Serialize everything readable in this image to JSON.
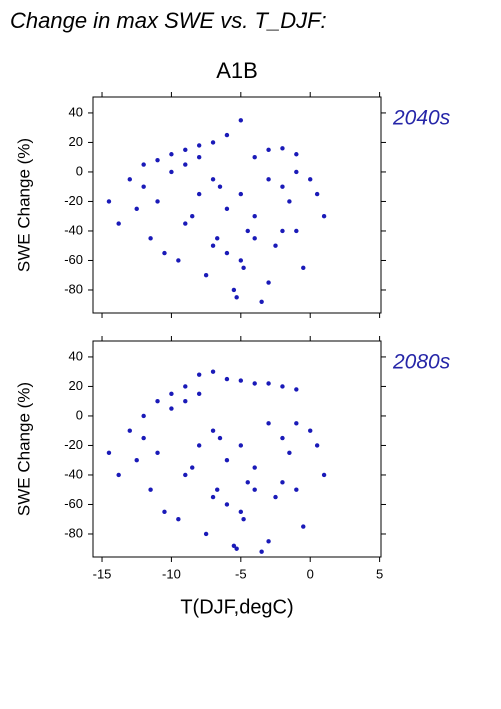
{
  "title": "Change in max SWE vs. T_DJF:",
  "subtitle": "A1B",
  "chart_data": [
    {
      "type": "scatter",
      "label": "2040s",
      "ylabel": "SWE Change (%)",
      "color": "#1a1ab8",
      "xlim": [
        -15.65,
        5.1
      ],
      "ylim": [
        -95.6,
        50.8
      ],
      "xticks": [
        -15,
        -10,
        -5,
        0,
        5
      ],
      "yticks": [
        40,
        20,
        0,
        -20,
        -40,
        -60,
        -80
      ],
      "x": [
        -14.5,
        -13.8,
        -13,
        -12.5,
        -12,
        -11.5,
        -11,
        -10.5,
        -10,
        -9.5,
        -9,
        -8.5,
        -8,
        -7.5,
        -7,
        -6.5,
        -6,
        -5.5,
        -5,
        -4.5,
        -4,
        -3.5,
        -3,
        -2.5,
        -2,
        -1.5,
        -1,
        -0.5,
        0,
        0.5,
        1,
        -12,
        -11,
        -10,
        -9,
        -8,
        -7,
        -6,
        -5,
        -4,
        -3,
        -2,
        -1,
        -9,
        -7,
        -5,
        -3,
        -1,
        -8,
        -6,
        -4,
        -2,
        -5.3,
        -4.8,
        -6.7
      ],
      "y": [
        -20,
        -35,
        -5,
        -25,
        5,
        -45,
        8,
        -55,
        12,
        -60,
        15,
        -30,
        18,
        -70,
        20,
        -10,
        25,
        -80,
        35,
        -40,
        10,
        -88,
        15,
        -50,
        16,
        -20,
        12,
        -65,
        -5,
        -15,
        -30,
        -10,
        -20,
        0,
        -35,
        -15,
        -50,
        -25,
        -60,
        -45,
        -5,
        -40,
        0,
        5,
        -5,
        -15,
        -75,
        -40,
        10,
        -55,
        -30,
        -10,
        -85,
        -65,
        -45
      ]
    },
    {
      "type": "scatter",
      "label": "2080s",
      "ylabel": "SWE Change (%)",
      "xlabel": "T(DJF,degC)",
      "color": "#1a1ab8",
      "xlim": [
        -15.65,
        5.1
      ],
      "ylim": [
        -95.6,
        50.8
      ],
      "xticks": [
        -15,
        -10,
        -5,
        0,
        5
      ],
      "yticks": [
        40,
        20,
        0,
        -20,
        -40,
        -60,
        -80
      ],
      "x": [
        -14.5,
        -13.8,
        -13,
        -12.5,
        -12,
        -11.5,
        -11,
        -10.5,
        -10,
        -9.5,
        -9,
        -8.5,
        -8,
        -7.5,
        -7,
        -6.5,
        -6,
        -5.5,
        -5,
        -4.5,
        -4,
        -3.5,
        -3,
        -2.5,
        -2,
        -1.5,
        -1,
        -0.5,
        0,
        0.5,
        1,
        -12,
        -11,
        -10,
        -9,
        -8,
        -7,
        -6,
        -5,
        -4,
        -3,
        -2,
        -1,
        -9,
        -7,
        -5,
        -3,
        -1,
        -8,
        -6,
        -4,
        -2,
        -5.3,
        -4.8,
        -6.7
      ],
      "y": [
        -25,
        -40,
        -10,
        -30,
        0,
        -50,
        10,
        -65,
        15,
        -70,
        20,
        -35,
        28,
        -80,
        30,
        -15,
        25,
        -88,
        24,
        -45,
        22,
        -92,
        22,
        -55,
        20,
        -25,
        18,
        -75,
        -10,
        -20,
        -40,
        -15,
        -25,
        5,
        -40,
        -20,
        -55,
        -30,
        -65,
        -50,
        -5,
        -45,
        -5,
        10,
        -10,
        -20,
        -85,
        -50,
        15,
        -60,
        -35,
        -15,
        -90,
        -70,
        -50
      ]
    }
  ]
}
